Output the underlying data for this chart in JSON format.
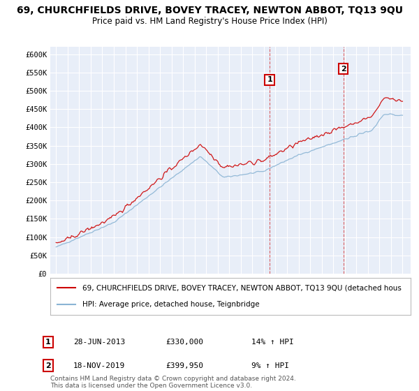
{
  "title": "69, CHURCHFIELDS DRIVE, BOVEY TRACEY, NEWTON ABBOT, TQ13 9QU",
  "subtitle": "Price paid vs. HM Land Registry's House Price Index (HPI)",
  "title_fontsize": 10,
  "subtitle_fontsize": 8.5,
  "background_color": "#ffffff",
  "plot_bg_color": "#e8eef8",
  "grid_color": "#ffffff",
  "ylim": [
    0,
    620000
  ],
  "yticks": [
    0,
    50000,
    100000,
    150000,
    200000,
    250000,
    300000,
    350000,
    400000,
    450000,
    500000,
    550000,
    600000
  ],
  "ytick_labels": [
    "£0",
    "£50K",
    "£100K",
    "£150K",
    "£200K",
    "£250K",
    "£300K",
    "£350K",
    "£400K",
    "£450K",
    "£500K",
    "£550K",
    "£600K"
  ],
  "red_line_label": "69, CHURCHFIELDS DRIVE, BOVEY TRACEY, NEWTON ABBOT, TQ13 9QU (detached hous",
  "blue_line_label": "HPI: Average price, detached house, Teignbridge",
  "red_color": "#cc0000",
  "blue_color": "#8ab4d4",
  "sale1_x": 2013.49,
  "sale1_label": "1",
  "sale1_date": "28-JUN-2013",
  "sale1_price": "£330,000",
  "sale1_hpi": "14% ↑ HPI",
  "sale2_x": 2019.88,
  "sale2_label": "2",
  "sale2_date": "18-NOV-2019",
  "sale2_price": "£399,950",
  "sale2_hpi": "9% ↑ HPI",
  "footer_text": "Contains HM Land Registry data © Crown copyright and database right 2024.\nThis data is licensed under the Open Government Licence v3.0.",
  "legend_border_color": "#bbbbbb",
  "sale_box_border_color": "#cc0000"
}
